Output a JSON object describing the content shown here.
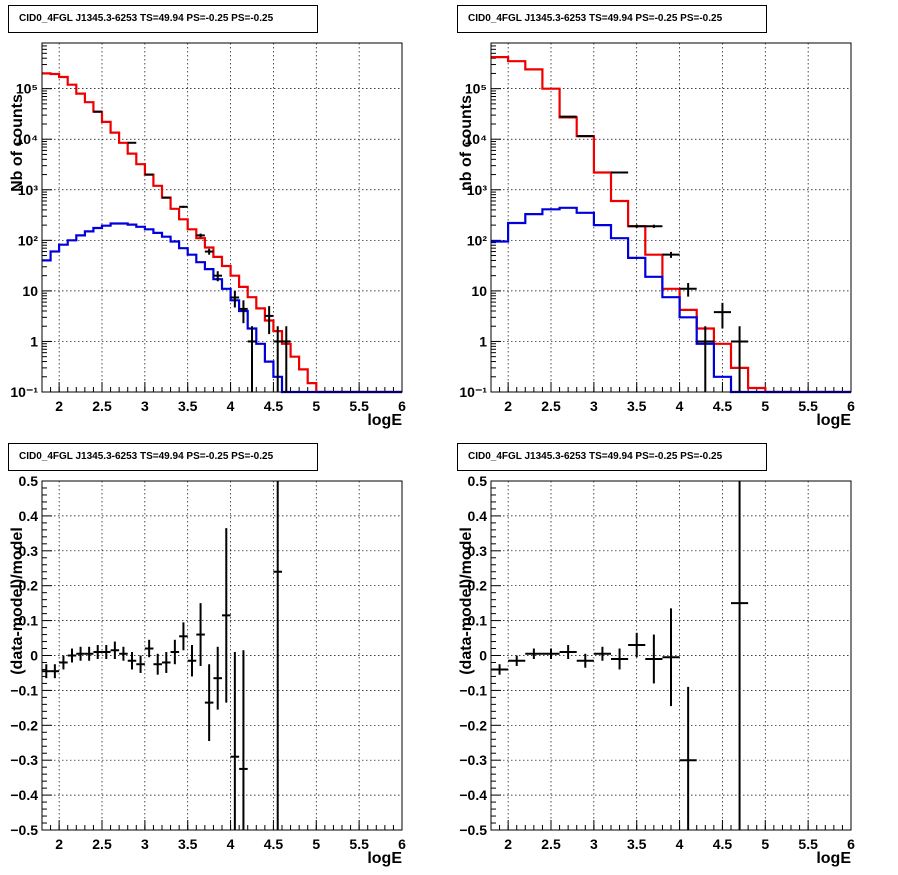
{
  "chart_data": [
    {
      "type": "histogram",
      "title": "CID0_4FGL J1345.3-6253 TS=49.94 PS=-0.25 PS=-0.25",
      "xlabel": "logE",
      "ylabel": "Nb of counts",
      "xlim": [
        1.8,
        6.0
      ],
      "ylim": [
        0.1,
        800000
      ],
      "yscale": "log",
      "grid": true,
      "xticks": [
        "2",
        "2.5",
        "3",
        "3.5",
        "4",
        "4.5",
        "5",
        "5.5",
        "6"
      ],
      "yticks": [
        "10⁻¹",
        "1",
        "10",
        "10²",
        "10³",
        "10⁴",
        "10⁵"
      ],
      "bin_edges": [
        1.8,
        1.9,
        2.0,
        2.1,
        2.2,
        2.3,
        2.4,
        2.5,
        2.6,
        2.7,
        2.8,
        2.9,
        3.0,
        3.1,
        3.2,
        3.3,
        3.4,
        3.5,
        3.6,
        3.7,
        3.8,
        3.9,
        4.0,
        4.1,
        4.2,
        4.3,
        4.4,
        4.5,
        4.6,
        4.7,
        4.8,
        4.9,
        5.0,
        5.1,
        5.2,
        5.3,
        5.4,
        5.5,
        5.6,
        5.7,
        5.8,
        5.9,
        6.0
      ],
      "series": [
        {
          "color": "#ee0000",
          "values": [
            200000,
            195000,
            170000,
            120000,
            80000,
            54000,
            35000,
            22000,
            13500,
            8500,
            5200,
            3200,
            2000,
            1200,
            700,
            420,
            260,
            165,
            110,
            72,
            47,
            31,
            20,
            12,
            7.5,
            4.5,
            2.6,
            1.6,
            0.9,
            0.5,
            0.28,
            0.15,
            0.1,
            0.1,
            0.1,
            0.1,
            0.1,
            0.1,
            0.1,
            0.1,
            0.1,
            0.1
          ]
        },
        {
          "color": "#0000dd",
          "values": [
            40,
            60,
            82,
            100,
            125,
            150,
            175,
            195,
            215,
            215,
            205,
            185,
            165,
            140,
            118,
            95,
            70,
            52,
            37,
            27,
            17,
            11,
            6.5,
            4,
            1.8,
            0.9,
            0.4,
            0.2,
            0.1,
            0.1,
            0.1,
            0.1,
            0.1,
            0.1,
            0.1,
            0.1,
            0.1,
            0.1,
            0.1,
            0.1,
            0.1,
            0.1
          ]
        }
      ],
      "points": {
        "x": [
          2.45,
          2.85,
          3.05,
          3.25,
          3.45,
          3.65,
          3.75,
          3.85,
          4.05,
          4.15,
          4.25,
          4.45,
          4.55,
          4.65
        ],
        "y": [
          35000,
          8500,
          2000,
          700,
          460,
          125,
          60,
          20,
          7.4,
          4.4,
          1,
          3.2,
          1,
          1
        ],
        "err": [
          190,
          92,
          45,
          27,
          21,
          11,
          8,
          4.5,
          2.7,
          2.1,
          1,
          1.8,
          1,
          1
        ]
      }
    },
    {
      "type": "histogram",
      "title": "CID0_4FGL J1345.3-6253 TS=49.94 PS=-0.25 PS=-0.25",
      "xlabel": "logE",
      "ylabel": "nb of counts",
      "xlim": [
        1.8,
        6.0
      ],
      "ylim": [
        0.1,
        800000
      ],
      "yscale": "log",
      "grid": true,
      "xticks": [
        "2",
        "2.5",
        "3",
        "3.5",
        "4",
        "4.5",
        "5",
        "5.5",
        "6"
      ],
      "yticks": [
        "10⁻¹",
        "1",
        "10",
        "10²",
        "10³",
        "10⁴",
        "10⁵"
      ],
      "bin_edges": [
        1.8,
        2.0,
        2.2,
        2.4,
        2.6,
        2.8,
        3.0,
        3.2,
        3.4,
        3.6,
        3.8,
        4.0,
        4.2,
        4.4,
        4.6,
        4.8,
        5.0,
        5.2,
        5.4,
        5.6,
        5.8,
        6.0
      ],
      "series": [
        {
          "color": "#ee0000",
          "values": [
            420000,
            350000,
            240000,
            100000,
            27000,
            11500,
            2200,
            600,
            190,
            52,
            11,
            4.2,
            1.8,
            0.9,
            0.3,
            0.12,
            0.1,
            0.1,
            0.1,
            0.1,
            0.1
          ]
        },
        {
          "color": "#0000dd",
          "values": [
            95,
            220,
            330,
            410,
            440,
            350,
            200,
            110,
            45,
            19,
            7.5,
            3,
            0.9,
            0.2,
            0.1,
            0.1,
            0.1,
            0.1,
            0.1,
            0.1,
            0.1
          ]
        }
      ],
      "points": {
        "x": [
          2.7,
          2.9,
          3.3,
          3.5,
          3.7,
          3.9,
          4.1,
          4.3,
          4.5,
          4.7
        ],
        "y": [
          28000,
          11500,
          2200,
          190,
          190,
          52,
          11,
          1,
          3.8,
          1
        ],
        "err": [
          170,
          107,
          47,
          14,
          14,
          7,
          3.3,
          1,
          2,
          1
        ]
      }
    },
    {
      "type": "scatter",
      "title": "CID0_4FGL J1345.3-6253 TS=49.94 PS=-0.25 PS=-0.25",
      "xlabel": "logE",
      "ylabel": "(data-model)/model",
      "xlim": [
        1.8,
        6.0
      ],
      "ylim": [
        -0.5,
        0.5
      ],
      "grid": true,
      "xticks": [
        "2",
        "2.5",
        "3",
        "3.5",
        "4",
        "4.5",
        "5",
        "5.5",
        "6"
      ],
      "yticks": [
        "−0.5",
        "−0.4",
        "−0.3",
        "−0.2",
        "−0.1",
        "0",
        "0.1",
        "0.2",
        "0.3",
        "0.4",
        "0.5"
      ],
      "points": {
        "x": [
          1.85,
          1.95,
          2.05,
          2.15,
          2.25,
          2.35,
          2.45,
          2.55,
          2.65,
          2.75,
          2.85,
          2.95,
          3.05,
          3.15,
          3.25,
          3.35,
          3.45,
          3.55,
          3.65,
          3.75,
          3.85,
          3.95,
          4.05,
          4.15,
          4.55
        ],
        "y": [
          -0.045,
          -0.045,
          -0.02,
          0.0,
          0.005,
          0.005,
          0.01,
          0.01,
          0.015,
          0.005,
          -0.015,
          -0.025,
          0.02,
          -0.025,
          -0.02,
          0.01,
          0.055,
          -0.015,
          0.06,
          -0.135,
          -0.065,
          0.115,
          -0.29,
          -0.325,
          0.24
        ],
        "err": [
          0.02,
          0.02,
          0.02,
          0.02,
          0.02,
          0.02,
          0.02,
          0.02,
          0.025,
          0.02,
          0.025,
          0.025,
          0.025,
          0.03,
          0.03,
          0.035,
          0.04,
          0.045,
          0.09,
          0.11,
          0.09,
          0.25,
          0.3,
          0.34,
          0.75
        ]
      }
    },
    {
      "type": "scatter",
      "title": "CID0_4FGL J1345.3-6253 TS=49.94 PS=-0.25 PS=-0.25",
      "xlabel": "logE",
      "ylabel": "(data-model)/model",
      "xlim": [
        1.8,
        6.0
      ],
      "ylim": [
        -0.5,
        0.5
      ],
      "grid": true,
      "xticks": [
        "2",
        "2.5",
        "3",
        "3.5",
        "4",
        "4.5",
        "5",
        "5.5",
        "6"
      ],
      "yticks": [
        "−0.5",
        "−0.4",
        "−0.3",
        "−0.2",
        "−0.1",
        "0",
        "0.1",
        "0.2",
        "0.3",
        "0.4",
        "0.5"
      ],
      "points": {
        "x": [
          1.9,
          2.1,
          2.3,
          2.5,
          2.7,
          2.9,
          3.1,
          3.3,
          3.5,
          3.7,
          3.9,
          4.1,
          4.7
        ],
        "y": [
          -0.04,
          -0.015,
          0.005,
          0.005,
          0.01,
          -0.015,
          0.005,
          -0.01,
          0.03,
          -0.01,
          -0.005,
          -0.3,
          0.15
        ],
        "err": [
          0.015,
          0.015,
          0.015,
          0.015,
          0.02,
          0.02,
          0.02,
          0.03,
          0.035,
          0.07,
          0.14,
          0.21,
          0.75
        ]
      }
    }
  ]
}
